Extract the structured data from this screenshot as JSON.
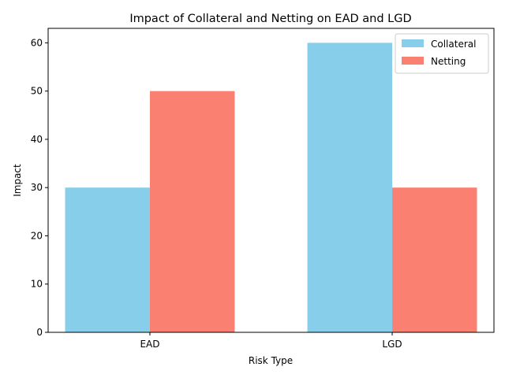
{
  "chart_data": {
    "type": "bar",
    "title": "Impact of Collateral and Netting on EAD and LGD",
    "xlabel": "Risk Type",
    "ylabel": "Impact",
    "categories": [
      "EAD",
      "LGD"
    ],
    "series": [
      {
        "name": "Collateral",
        "values": [
          30,
          60
        ],
        "color": "#87ceeb"
      },
      {
        "name": "Netting",
        "values": [
          50,
          30
        ],
        "color": "#fa8072"
      }
    ],
    "ylim": [
      0,
      63
    ],
    "yticks": [
      0,
      10,
      20,
      30,
      40,
      50,
      60
    ],
    "grid": false,
    "legend_position": "top-right"
  }
}
